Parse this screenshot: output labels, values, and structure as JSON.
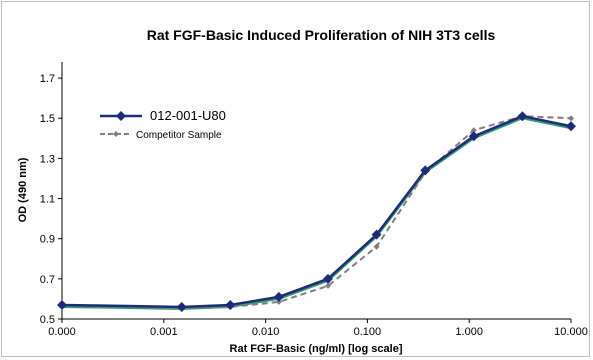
{
  "chart_data": {
    "type": "line",
    "title": "Rat FGF-Basic Induced Proliferation of NIH 3T3 cells",
    "xlabel": "Rat FGF-Basic (ng/ml) [log scale]",
    "ylabel": "OD (490 nm)",
    "xscale": "log",
    "x_ticks": [
      "0.000",
      "0.001",
      "0.010",
      "0.100",
      "1.000",
      "10.000"
    ],
    "y_ticks": [
      "0.5",
      "0.7",
      "0.9",
      "1.1",
      "1.3",
      "1.5",
      "1.7"
    ],
    "ylim": [
      0.5,
      1.78
    ],
    "grid": false,
    "legend_position": "upper-left",
    "x": [
      0.0001,
      0.0015,
      0.0045,
      0.0135,
      0.041,
      0.123,
      0.37,
      1.11,
      3.33,
      10.0
    ],
    "series": [
      {
        "name": "012-001-U80",
        "color": "#1f2a7a",
        "marker": "diamond",
        "style": "solid",
        "values": [
          0.57,
          0.56,
          0.57,
          0.61,
          0.7,
          0.92,
          1.24,
          1.41,
          1.51,
          1.46
        ]
      },
      {
        "name": "Competitor Sample",
        "color": "#7f7f7f",
        "marker": "small-diamond",
        "style": "dashed",
        "values": [
          0.57,
          0.555,
          0.56,
          0.585,
          0.665,
          0.86,
          1.23,
          1.44,
          1.51,
          1.5
        ]
      }
    ],
    "fit_curve_color": "#2e9e6e"
  }
}
